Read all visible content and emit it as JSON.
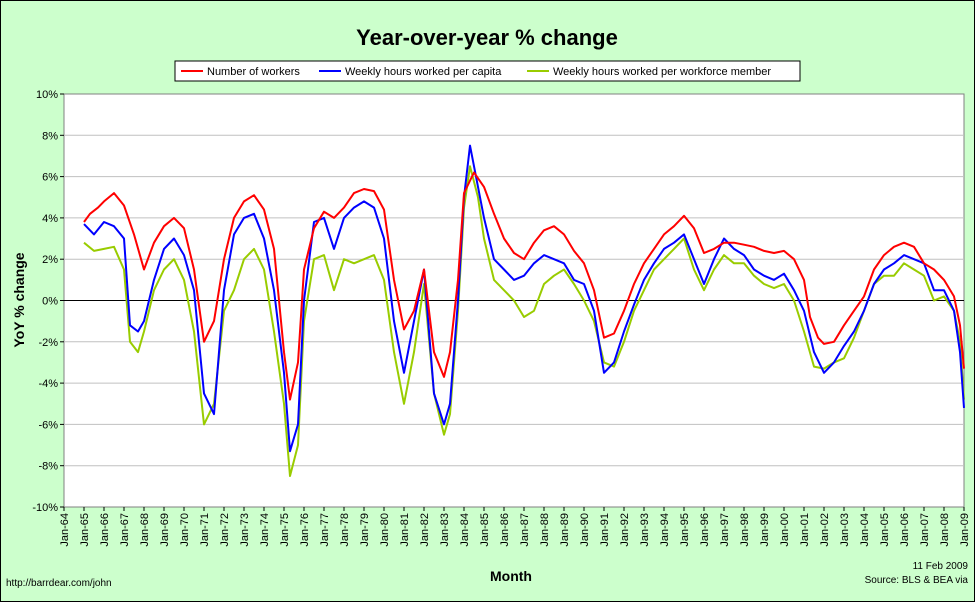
{
  "chart_data": {
    "type": "line",
    "title": "Year-over-year % change",
    "xlabel": "Month",
    "ylabel": "YoY % change",
    "ylim": [
      -10,
      10
    ],
    "yticks": [
      "-10%",
      "-8%",
      "-6%",
      "-4%",
      "-2%",
      "0%",
      "2%",
      "4%",
      "6%",
      "8%",
      "10%"
    ],
    "xticks": [
      "Jan-64",
      "Jan-65",
      "Jan-66",
      "Jan-67",
      "Jan-68",
      "Jan-69",
      "Jan-70",
      "Jan-71",
      "Jan-72",
      "Jan-73",
      "Jan-74",
      "Jan-75",
      "Jan-76",
      "Jan-77",
      "Jan-78",
      "Jan-79",
      "Jan-80",
      "Jan-81",
      "Jan-82",
      "Jan-83",
      "Jan-84",
      "Jan-85",
      "Jan-86",
      "Jan-87",
      "Jan-88",
      "Jan-89",
      "Jan-90",
      "Jan-91",
      "Jan-92",
      "Jan-93",
      "Jan-94",
      "Jan-95",
      "Jan-96",
      "Jan-97",
      "Jan-98",
      "Jan-99",
      "Jan-00",
      "Jan-01",
      "Jan-02",
      "Jan-03",
      "Jan-04",
      "Jan-05",
      "Jan-06",
      "Jan-07",
      "Jan-08",
      "Jan-09"
    ],
    "xrange": [
      1964.0,
      2009.0
    ],
    "grid": true,
    "legend_position": "top",
    "series": [
      {
        "name": "Number of workers",
        "color": "#ff0000",
        "x": [
          1965.0,
          1965.3,
          1965.7,
          1966.0,
          1966.5,
          1967.0,
          1967.5,
          1968.0,
          1968.5,
          1969.0,
          1969.5,
          1970.0,
          1970.5,
          1971.0,
          1971.5,
          1972.0,
          1972.5,
          1973.0,
          1973.5,
          1974.0,
          1974.5,
          1975.0,
          1975.3,
          1975.7,
          1976.0,
          1976.5,
          1977.0,
          1977.5,
          1978.0,
          1978.5,
          1979.0,
          1979.5,
          1980.0,
          1980.5,
          1981.0,
          1981.5,
          1982.0,
          1982.5,
          1983.0,
          1983.3,
          1983.7,
          1984.0,
          1984.5,
          1985.0,
          1985.5,
          1986.0,
          1986.5,
          1987.0,
          1987.5,
          1988.0,
          1988.5,
          1989.0,
          1989.5,
          1990.0,
          1990.5,
          1991.0,
          1991.5,
          1992.0,
          1992.5,
          1993.0,
          1993.5,
          1994.0,
          1994.5,
          1995.0,
          1995.5,
          1996.0,
          1996.5,
          1997.0,
          1997.5,
          1998.0,
          1998.5,
          1999.0,
          1999.5,
          2000.0,
          2000.5,
          2001.0,
          2001.3,
          2001.7,
          2002.0,
          2002.5,
          2003.0,
          2003.5,
          2004.0,
          2004.5,
          2005.0,
          2005.5,
          2006.0,
          2006.5,
          2007.0,
          2007.5,
          2008.0,
          2008.5,
          2008.8,
          2009.0
        ],
        "values": [
          3.8,
          4.2,
          4.5,
          4.8,
          5.2,
          4.6,
          3.2,
          1.5,
          2.8,
          3.6,
          4.0,
          3.5,
          1.5,
          -2.0,
          -1.0,
          2.0,
          4.0,
          4.8,
          5.1,
          4.4,
          2.5,
          -2.5,
          -4.8,
          -3.0,
          1.5,
          3.5,
          4.3,
          4.0,
          4.5,
          5.2,
          5.4,
          5.3,
          4.4,
          1.0,
          -1.4,
          -0.5,
          1.5,
          -2.5,
          -3.7,
          -2.5,
          1.0,
          5.2,
          6.2,
          5.5,
          4.2,
          3.0,
          2.3,
          2.0,
          2.8,
          3.4,
          3.6,
          3.2,
          2.4,
          1.8,
          0.5,
          -1.8,
          -1.6,
          -0.5,
          0.8,
          1.8,
          2.5,
          3.2,
          3.6,
          4.1,
          3.5,
          2.3,
          2.5,
          2.8,
          2.8,
          2.7,
          2.6,
          2.4,
          2.3,
          2.4,
          2.0,
          1.0,
          -0.8,
          -1.8,
          -2.1,
          -2.0,
          -1.2,
          -0.5,
          0.2,
          1.5,
          2.2,
          2.6,
          2.8,
          2.6,
          1.8,
          1.5,
          1.0,
          0.2,
          -1.2,
          -3.3
        ]
      },
      {
        "name": "Weekly hours worked per capita",
        "color": "#0000ff",
        "x": [
          1965.0,
          1965.5,
          1966.0,
          1966.5,
          1967.0,
          1967.3,
          1967.7,
          1968.0,
          1968.5,
          1969.0,
          1969.5,
          1970.0,
          1970.5,
          1971.0,
          1971.5,
          1972.0,
          1972.5,
          1973.0,
          1973.5,
          1974.0,
          1974.5,
          1975.0,
          1975.3,
          1975.7,
          1976.0,
          1976.5,
          1977.0,
          1977.5,
          1978.0,
          1978.5,
          1979.0,
          1979.5,
          1980.0,
          1980.5,
          1981.0,
          1981.5,
          1982.0,
          1982.5,
          1983.0,
          1983.3,
          1983.7,
          1984.0,
          1984.3,
          1984.7,
          1985.0,
          1985.5,
          1986.0,
          1986.5,
          1987.0,
          1987.5,
          1988.0,
          1988.5,
          1989.0,
          1989.5,
          1990.0,
          1990.5,
          1991.0,
          1991.5,
          1992.0,
          1992.5,
          1993.0,
          1993.5,
          1994.0,
          1994.5,
          1995.0,
          1995.5,
          1996.0,
          1996.5,
          1997.0,
          1997.5,
          1998.0,
          1998.5,
          1999.0,
          1999.5,
          2000.0,
          2000.5,
          2001.0,
          2001.5,
          2002.0,
          2002.5,
          2003.0,
          2003.5,
          2004.0,
          2004.5,
          2005.0,
          2005.5,
          2006.0,
          2006.5,
          2007.0,
          2007.5,
          2008.0,
          2008.5,
          2008.8,
          2009.0
        ],
        "values": [
          3.7,
          3.2,
          3.8,
          3.6,
          3.0,
          -1.2,
          -1.5,
          -1.0,
          1.0,
          2.5,
          3.0,
          2.2,
          0.5,
          -4.5,
          -5.5,
          0.5,
          3.2,
          4.0,
          4.2,
          3.0,
          0.5,
          -3.5,
          -7.3,
          -6.0,
          0.0,
          3.8,
          4.0,
          2.5,
          4.0,
          4.5,
          4.8,
          4.5,
          3.0,
          -1.0,
          -3.5,
          -1.0,
          1.5,
          -4.5,
          -6.0,
          -5.0,
          0.0,
          5.0,
          7.5,
          5.5,
          4.0,
          2.0,
          1.5,
          1.0,
          1.2,
          1.8,
          2.2,
          2.0,
          1.8,
          1.0,
          0.8,
          -0.5,
          -3.5,
          -3.0,
          -1.5,
          -0.2,
          1.0,
          1.8,
          2.5,
          2.8,
          3.2,
          2.0,
          0.8,
          2.0,
          3.0,
          2.5,
          2.2,
          1.5,
          1.2,
          1.0,
          1.3,
          0.5,
          -0.5,
          -2.5,
          -3.5,
          -3.0,
          -2.2,
          -1.5,
          -0.5,
          0.8,
          1.5,
          1.8,
          2.2,
          2.0,
          1.8,
          0.5,
          0.5,
          -0.5,
          -2.5,
          -5.2
        ]
      },
      {
        "name": "Weekly hours worked per workforce member",
        "color": "#99cc00",
        "x": [
          1965.0,
          1965.5,
          1966.0,
          1966.5,
          1967.0,
          1967.3,
          1967.7,
          1968.0,
          1968.5,
          1969.0,
          1969.5,
          1970.0,
          1970.5,
          1971.0,
          1971.5,
          1972.0,
          1972.5,
          1973.0,
          1973.5,
          1974.0,
          1974.5,
          1975.0,
          1975.3,
          1975.7,
          1976.0,
          1976.5,
          1977.0,
          1977.5,
          1978.0,
          1978.5,
          1979.0,
          1979.5,
          1980.0,
          1980.5,
          1981.0,
          1981.5,
          1982.0,
          1982.5,
          1983.0,
          1983.3,
          1983.7,
          1984.0,
          1984.3,
          1984.7,
          1985.0,
          1985.5,
          1986.0,
          1986.5,
          1987.0,
          1987.5,
          1988.0,
          1988.5,
          1989.0,
          1989.5,
          1990.0,
          1990.5,
          1991.0,
          1991.5,
          1992.0,
          1992.5,
          1993.0,
          1993.5,
          1994.0,
          1994.5,
          1995.0,
          1995.5,
          1996.0,
          1996.5,
          1997.0,
          1997.5,
          1998.0,
          1998.5,
          1999.0,
          1999.5,
          2000.0,
          2000.5,
          2001.0,
          2001.5,
          2002.0,
          2002.5,
          2003.0,
          2003.5,
          2004.0,
          2004.5,
          2005.0,
          2005.5,
          2006.0,
          2006.5,
          2007.0,
          2007.5,
          2008.0,
          2008.5,
          2008.8,
          2009.0
        ],
        "values": [
          2.8,
          2.4,
          2.5,
          2.6,
          1.5,
          -2.0,
          -2.5,
          -1.5,
          0.5,
          1.5,
          2.0,
          1.0,
          -1.5,
          -6.0,
          -5.0,
          -0.5,
          0.5,
          2.0,
          2.5,
          1.5,
          -1.5,
          -5.0,
          -8.5,
          -7.0,
          -1.0,
          2.0,
          2.2,
          0.5,
          2.0,
          1.8,
          2.0,
          2.2,
          1.0,
          -2.5,
          -5.0,
          -2.5,
          0.8,
          -4.5,
          -6.5,
          -5.5,
          -0.5,
          4.5,
          6.5,
          5.0,
          3.0,
          1.0,
          0.5,
          0.0,
          -0.8,
          -0.5,
          0.8,
          1.2,
          1.5,
          0.8,
          0.0,
          -1.0,
          -3.0,
          -3.2,
          -2.0,
          -0.5,
          0.5,
          1.5,
          2.0,
          2.5,
          3.0,
          1.5,
          0.5,
          1.5,
          2.2,
          1.8,
          1.8,
          1.2,
          0.8,
          0.6,
          0.8,
          0.0,
          -1.5,
          -3.2,
          -3.3,
          -3.0,
          -2.8,
          -1.8,
          -0.5,
          0.8,
          1.2,
          1.2,
          1.8,
          1.5,
          1.2,
          0.0,
          0.2,
          -0.5,
          -2.0,
          -4.8
        ]
      }
    ]
  },
  "footer": {
    "left": "http://barrdear.com/john",
    "right_date": "11 Feb 2009",
    "right_source": "Source:  BLS & BEA via"
  }
}
